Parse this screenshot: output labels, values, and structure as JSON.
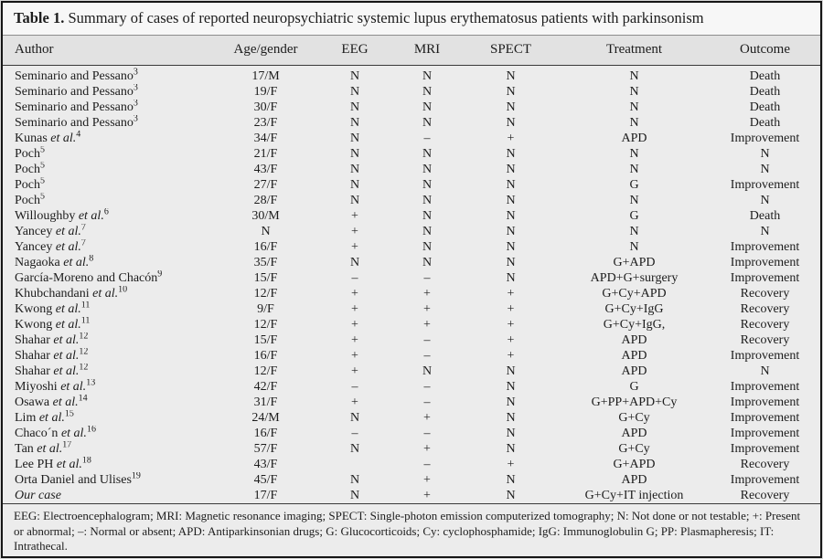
{
  "title": {
    "label": "Table 1.",
    "text": " Summary of cases of reported neuropsychiatric systemic lupus erythematosus patients with parkinsonism"
  },
  "table": {
    "headers": [
      "Author",
      "Age/gender",
      "EEG",
      "MRI",
      "SPECT",
      "Treatment",
      "Outcome"
    ],
    "rows": [
      {
        "author": "Seminario and Pessano",
        "ref": "3",
        "age_gender": "17/M",
        "eeg": "N",
        "mri": "N",
        "spect": "N",
        "treatment": "N",
        "outcome": "Death"
      },
      {
        "author": "Seminario and Pessano",
        "ref": "3",
        "age_gender": "19/F",
        "eeg": "N",
        "mri": "N",
        "spect": "N",
        "treatment": "N",
        "outcome": "Death"
      },
      {
        "author": "Seminario and Pessano",
        "ref": "3",
        "age_gender": "30/F",
        "eeg": "N",
        "mri": "N",
        "spect": "N",
        "treatment": "N",
        "outcome": "Death"
      },
      {
        "author": "Seminario and Pessano",
        "ref": "3",
        "age_gender": "23/F",
        "eeg": "N",
        "mri": "N",
        "spect": "N",
        "treatment": "N",
        "outcome": "Death"
      },
      {
        "author": "Kunas et al.",
        "ref": "4",
        "age_gender": "34/F",
        "eeg": "N",
        "mri": "–",
        "spect": "+",
        "treatment": "APD",
        "outcome": "Improvement"
      },
      {
        "author": "Poch",
        "ref": "5",
        "age_gender": "21/F",
        "eeg": "N",
        "mri": "N",
        "spect": "N",
        "treatment": "N",
        "outcome": "N"
      },
      {
        "author": "Poch",
        "ref": "5",
        "age_gender": "43/F",
        "eeg": "N",
        "mri": "N",
        "spect": "N",
        "treatment": "N",
        "outcome": "N"
      },
      {
        "author": "Poch",
        "ref": "5",
        "age_gender": "27/F",
        "eeg": "N",
        "mri": "N",
        "spect": "N",
        "treatment": "G",
        "outcome": "Improvement"
      },
      {
        "author": "Poch",
        "ref": "5",
        "age_gender": "28/F",
        "eeg": "N",
        "mri": "N",
        "spect": "N",
        "treatment": "N",
        "outcome": "N"
      },
      {
        "author": "Willoughby et al.",
        "ref": "6",
        "age_gender": "30/M",
        "eeg": "+",
        "mri": "N",
        "spect": "N",
        "treatment": "G",
        "outcome": "Death"
      },
      {
        "author": "Yancey et al.",
        "ref": "7",
        "age_gender": "N",
        "eeg": "+",
        "mri": "N",
        "spect": "N",
        "treatment": "N",
        "outcome": "N"
      },
      {
        "author": "Yancey et al.",
        "ref": "7",
        "age_gender": "16/F",
        "eeg": "+",
        "mri": "N",
        "spect": "N",
        "treatment": "N",
        "outcome": "Improvement"
      },
      {
        "author": "Nagaoka et al.",
        "ref": "8",
        "age_gender": "35/F",
        "eeg": "N",
        "mri": "N",
        "spect": "N",
        "treatment": "G+APD",
        "outcome": "Improvement"
      },
      {
        "author": "García-Moreno and Chacón",
        "ref": "9",
        "age_gender": "15/F",
        "eeg": "–",
        "mri": "–",
        "spect": "N",
        "treatment": "APD+G+surgery",
        "outcome": "Improvement"
      },
      {
        "author": "Khubchandani et al.",
        "ref": "10",
        "age_gender": "12/F",
        "eeg": "+",
        "mri": "+",
        "spect": "+",
        "treatment": "G+Cy+APD",
        "outcome": "Recovery"
      },
      {
        "author": "Kwong et al.",
        "ref": "11",
        "age_gender": "9/F",
        "eeg": "+",
        "mri": "+",
        "spect": "+",
        "treatment": "G+Cy+IgG",
        "outcome": "Recovery"
      },
      {
        "author": "Kwong et al.",
        "ref": "11",
        "age_gender": "12/F",
        "eeg": "+",
        "mri": "+",
        "spect": "+",
        "treatment": "G+Cy+IgG,",
        "outcome": "Recovery"
      },
      {
        "author": "Shahar et al.",
        "ref": "12",
        "age_gender": "15/F",
        "eeg": "+",
        "mri": "–",
        "spect": "+",
        "treatment": "APD",
        "outcome": "Recovery"
      },
      {
        "author": "Shahar et al.",
        "ref": "12",
        "age_gender": "16/F",
        "eeg": "+",
        "mri": "–",
        "spect": "+",
        "treatment": "APD",
        "outcome": "Improvement"
      },
      {
        "author": "Shahar et al.",
        "ref": "12",
        "age_gender": "12/F",
        "eeg": "+",
        "mri": "N",
        "spect": "N",
        "treatment": "APD",
        "outcome": "N"
      },
      {
        "author": "Miyoshi et al.",
        "ref": "13",
        "age_gender": "42/F",
        "eeg": "–",
        "mri": "–",
        "spect": "N",
        "treatment": "G",
        "outcome": "Improvement"
      },
      {
        "author": "Osawa et al.",
        "ref": "14",
        "age_gender": "31/F",
        "eeg": "+",
        "mri": "–",
        "spect": "N",
        "treatment": "G+PP+APD+Cy",
        "outcome": "Improvement"
      },
      {
        "author": "Lim et al.",
        "ref": "15",
        "age_gender": "24/M",
        "eeg": "N",
        "mri": "+",
        "spect": "N",
        "treatment": "G+Cy",
        "outcome": "Improvement"
      },
      {
        "author": "Chaco´n et al.",
        "ref": "16",
        "age_gender": "16/F",
        "eeg": "–",
        "mri": "–",
        "spect": "N",
        "treatment": "APD",
        "outcome": "Improvement"
      },
      {
        "author": "Tan et al.",
        "ref": "17",
        "age_gender": "57/F",
        "eeg": "N",
        "mri": "+",
        "spect": "N",
        "treatment": "G+Cy",
        "outcome": "Improvement"
      },
      {
        "author": "Lee PH et al.",
        "ref": "18",
        "age_gender": "43/F",
        "eeg": "",
        "mri": "–",
        "spect": "+",
        "treatment": "G+APD",
        "outcome": "Recovery"
      },
      {
        "author": "Orta Daniel and Ulises",
        "ref": "19",
        "age_gender": "45/F",
        "eeg": "N",
        "mri": "+",
        "spect": "N",
        "treatment": "APD",
        "outcome": "Improvement"
      },
      {
        "author": "Our case",
        "ref": "",
        "italic": true,
        "age_gender": "17/F",
        "eeg": "N",
        "mri": "+",
        "spect": "N",
        "treatment": "G+Cy+IT injection",
        "outcome": "Recovery"
      }
    ]
  },
  "footnote": "EEG: Electroencephalogram; MRI: Magnetic resonance imaging; SPECT: Single-photon emission computerized tomography; N: Not done or not testable; +: Present or abnormal; –: Normal or absent; APD: Antiparkinsonian drugs; G: Glucocorticoids; Cy: cyclophosphamide; IgG: Immunoglobulin G; PP: Plasmapheresis; IT: Intrathecal.",
  "colors": {
    "page_background": "#d6d6d6",
    "panel_background": "#ececec",
    "header_band": "#e2e2e2",
    "border": "#151515",
    "text": "#1c1c1c"
  }
}
